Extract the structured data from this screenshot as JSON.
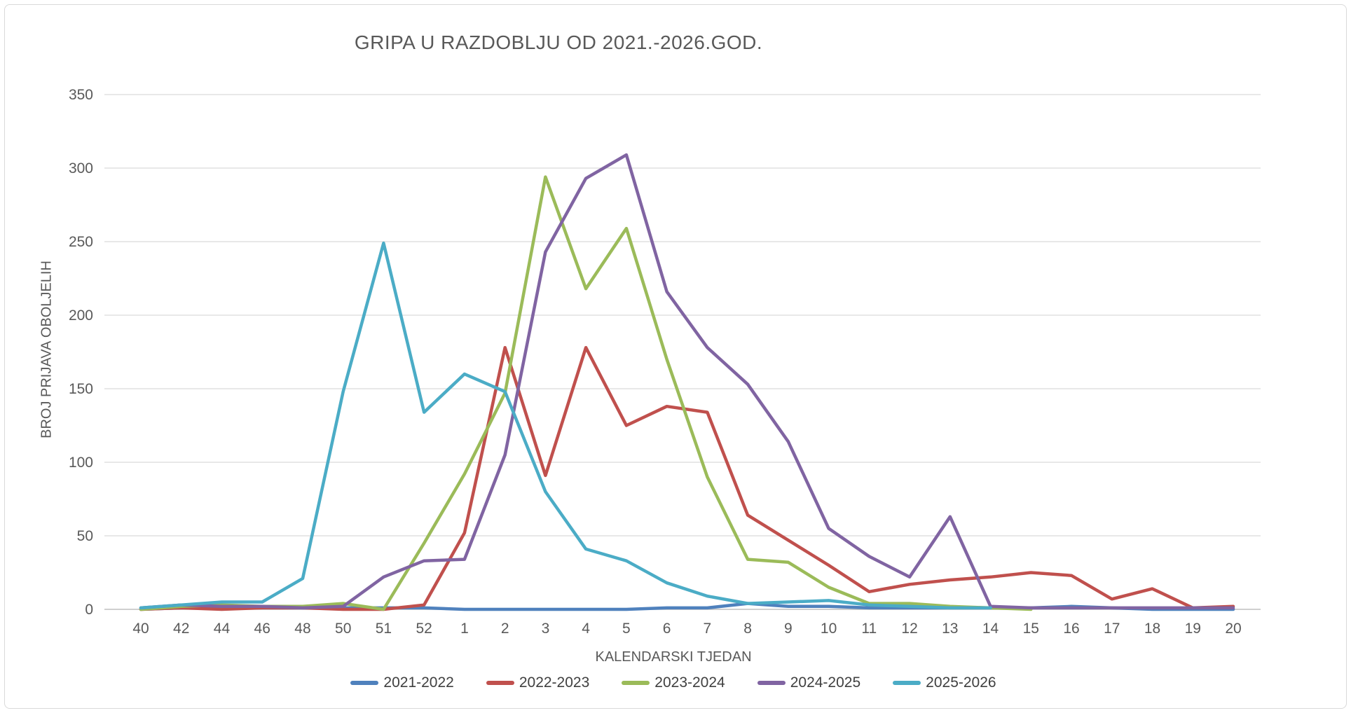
{
  "chart_data": {
    "type": "line",
    "title": "GRIPA U RAZDOBLJU OD 2021.-2026.GOD.",
    "xlabel": "KALENDARSKI TJEDAN",
    "ylabel": "BROJ PRIJAVA OBOLJELIH",
    "ylim": [
      0,
      350
    ],
    "y_ticks": [
      0,
      50,
      100,
      150,
      200,
      250,
      300,
      350
    ],
    "grid": true,
    "legend_position": "bottom",
    "categories": [
      "40",
      "42",
      "44",
      "46",
      "48",
      "50",
      "51",
      "52",
      "1",
      "2",
      "3",
      "4",
      "5",
      "6",
      "7",
      "8",
      "9",
      "10",
      "11",
      "12",
      "13",
      "14",
      "15",
      "16",
      "17",
      "18",
      "19",
      "20"
    ],
    "series": [
      {
        "name": "2021-2022",
        "color": "#4F81BD",
        "values": [
          0,
          1,
          1,
          1,
          1,
          1,
          1,
          1,
          0,
          0,
          0,
          0,
          0,
          1,
          1,
          4,
          2,
          2,
          1,
          1,
          1,
          1,
          1,
          2,
          1,
          0,
          0,
          0
        ]
      },
      {
        "name": "2022-2023",
        "color": "#C0504D",
        "values": [
          0,
          1,
          0,
          1,
          1,
          0,
          0,
          3,
          52,
          178,
          91,
          178,
          125,
          138,
          134,
          64,
          47,
          30,
          12,
          17,
          20,
          22,
          25,
          23,
          7,
          14,
          1,
          2
        ]
      },
      {
        "name": "2023-2024",
        "color": "#9BBB59",
        "values": [
          0,
          2,
          3,
          2,
          2,
          4,
          0,
          45,
          92,
          147,
          294,
          218,
          259,
          170,
          90,
          34,
          32,
          15,
          4,
          4,
          2,
          1,
          0,
          null,
          null,
          null,
          null,
          null
        ]
      },
      {
        "name": "2024-2025",
        "color": "#8064A2",
        "values": [
          1,
          3,
          2,
          2,
          1,
          2,
          22,
          33,
          34,
          105,
          243,
          293,
          309,
          216,
          178,
          153,
          114,
          55,
          36,
          22,
          63,
          2,
          1,
          1,
          1,
          1,
          1,
          1
        ]
      },
      {
        "name": "2025-2026",
        "color": "#4BACC6",
        "values": [
          1,
          3,
          5,
          5,
          21,
          148,
          249,
          134,
          160,
          148,
          80,
          41,
          33,
          18,
          9,
          4,
          5,
          6,
          3,
          2,
          1,
          1,
          null,
          null,
          null,
          null,
          null,
          null
        ]
      }
    ],
    "gridline_color": "#D9D9D9",
    "axis_line_color": "#BFBFBF",
    "text_color": "#595959"
  }
}
